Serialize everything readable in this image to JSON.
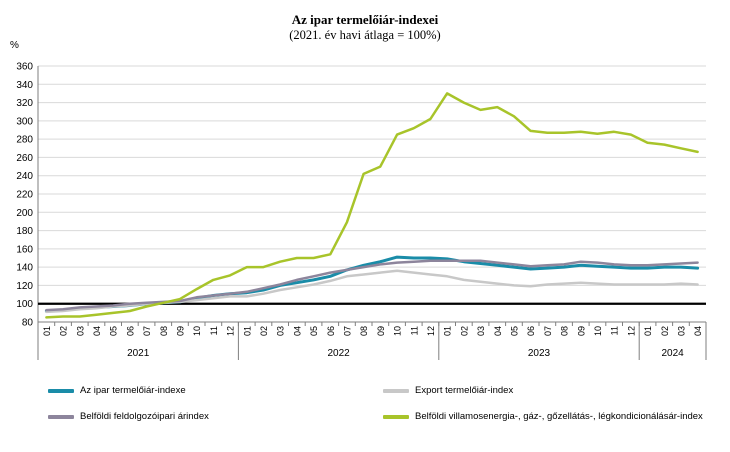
{
  "chart_data": {
    "type": "line",
    "title": "Az ipar termelőiár-indexei",
    "subtitle": "(2021. év havi átlaga = 100%)",
    "ylabel": "%",
    "ylim": [
      80,
      360
    ],
    "ytick_step": 20,
    "yticks": [
      "80",
      "100",
      "120",
      "140",
      "160",
      "180",
      "200",
      "220",
      "240",
      "260",
      "280",
      "300",
      "320",
      "340",
      "360"
    ],
    "x": [
      "01",
      "02",
      "03",
      "04",
      "05",
      "06",
      "07",
      "08",
      "09",
      "10",
      "11",
      "12",
      "01",
      "02",
      "03",
      "04",
      "05",
      "06",
      "07",
      "08",
      "09",
      "10",
      "11",
      "12",
      "01",
      "02",
      "03",
      "04",
      "05",
      "06",
      "07",
      "08",
      "09",
      "10",
      "11",
      "12",
      "01",
      "02",
      "03",
      "04"
    ],
    "years": [
      {
        "label": "2021",
        "start": 0,
        "count": 12
      },
      {
        "label": "2022",
        "start": 12,
        "count": 12
      },
      {
        "label": "2023",
        "start": 24,
        "count": 12
      },
      {
        "label": "2024",
        "start": 36,
        "count": 4
      }
    ],
    "reference_line": 100,
    "grid": true,
    "legend_position": "bottom",
    "series": [
      {
        "name": "Az ipar termelőiár-indexe",
        "color": "#1a8ca8",
        "width": 3,
        "values": [
          92,
          93,
          95,
          96,
          97,
          98,
          100,
          101,
          102,
          106,
          109,
          111,
          112,
          115,
          120,
          123,
          126,
          130,
          137,
          142,
          146,
          151,
          150,
          150,
          149,
          146,
          144,
          142,
          140,
          138,
          139,
          140,
          142,
          141,
          140,
          139,
          139,
          140,
          140,
          139
        ]
      },
      {
        "name": "Export termelőiár-index",
        "color": "#c8c8c8",
        "width": 2.5,
        "values": [
          91,
          92,
          94,
          95,
          97,
          98,
          100,
          101,
          102,
          104,
          106,
          108,
          108,
          111,
          115,
          118,
          121,
          125,
          130,
          132,
          134,
          136,
          134,
          132,
          130,
          126,
          124,
          122,
          120,
          119,
          121,
          122,
          123,
          122,
          121,
          121,
          121,
          121,
          122,
          121
        ]
      },
      {
        "name": "Belföldi feldolgozóipari árindex",
        "color": "#8d859c",
        "width": 2.5,
        "values": [
          93,
          94,
          96,
          97,
          98,
          100,
          101,
          102,
          103,
          107,
          109,
          111,
          113,
          117,
          121,
          126,
          130,
          134,
          137,
          140,
          143,
          145,
          146,
          147,
          147,
          147,
          147,
          145,
          143,
          141,
          142,
          143,
          146,
          145,
          143,
          142,
          142,
          143,
          144,
          145
        ]
      },
      {
        "name": "Belföldi villamosenergia-, gáz-, gőzellátás-, légkondicionálásár-index",
        "color": "#a8c42a",
        "width": 2.5,
        "values": [
          85,
          86,
          86,
          88,
          90,
          92,
          97,
          101,
          105,
          116,
          126,
          131,
          140,
          140,
          146,
          150,
          150,
          154,
          189,
          242,
          250,
          285,
          292,
          302,
          330,
          320,
          312,
          315,
          305,
          289,
          287,
          287,
          288,
          286,
          288,
          285,
          276,
          274,
          270,
          266
        ]
      }
    ]
  }
}
